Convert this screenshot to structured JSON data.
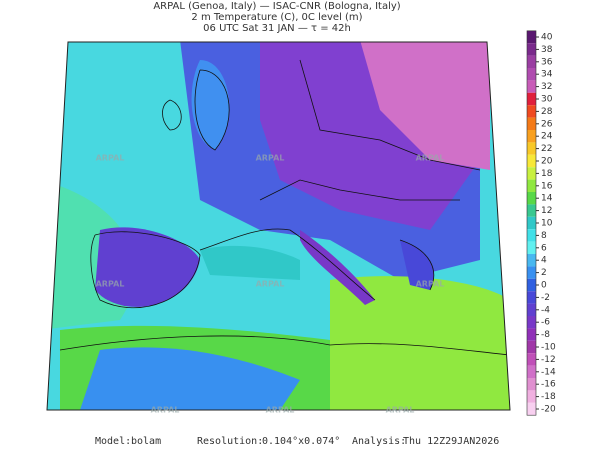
{
  "header": {
    "line1": "ARPAL (Genoa, Italy)  —  ISAC-CNR (Bologna, Italy)",
    "line2": "2 m Temperature (C), 0C level (m)",
    "line3": "06 UTC Sat 31 JAN  —  τ = 42h"
  },
  "watermark": "ARPAL",
  "colorbar": {
    "ticks": [
      40,
      38,
      36,
      34,
      32,
      30,
      28,
      26,
      24,
      22,
      20,
      18,
      16,
      14,
      12,
      10,
      8,
      6,
      4,
      2,
      0,
      -2,
      -4,
      -6,
      -8,
      -10,
      -12,
      -14,
      -16,
      -18,
      -20
    ],
    "colors": [
      "#5a1870",
      "#7a2a8c",
      "#9a3ea2",
      "#b04cb0",
      "#c85cb8",
      "#e0203c",
      "#f04a20",
      "#f47a18",
      "#f8a020",
      "#f8c828",
      "#f8e838",
      "#c8f040",
      "#90e840",
      "#58d848",
      "#38c890",
      "#30c8c8",
      "#40e0e8",
      "#60f0f0",
      "#48b8f0",
      "#3890f0",
      "#3060e0",
      "#4848d8",
      "#6040d0",
      "#7838c8",
      "#9030b8",
      "#a038a8",
      "#c050b8",
      "#d070c8",
      "#e090d0",
      "#f0b0e0",
      "#f8d0f0"
    ]
  },
  "footer": {
    "model_label": "Model:",
    "model": "bolam",
    "resolution_label": "Resolution:",
    "resolution": "0.104°x0.074°",
    "analysis_label": "Analysis:",
    "analysis": "Thu 12Z29JAN2026"
  }
}
